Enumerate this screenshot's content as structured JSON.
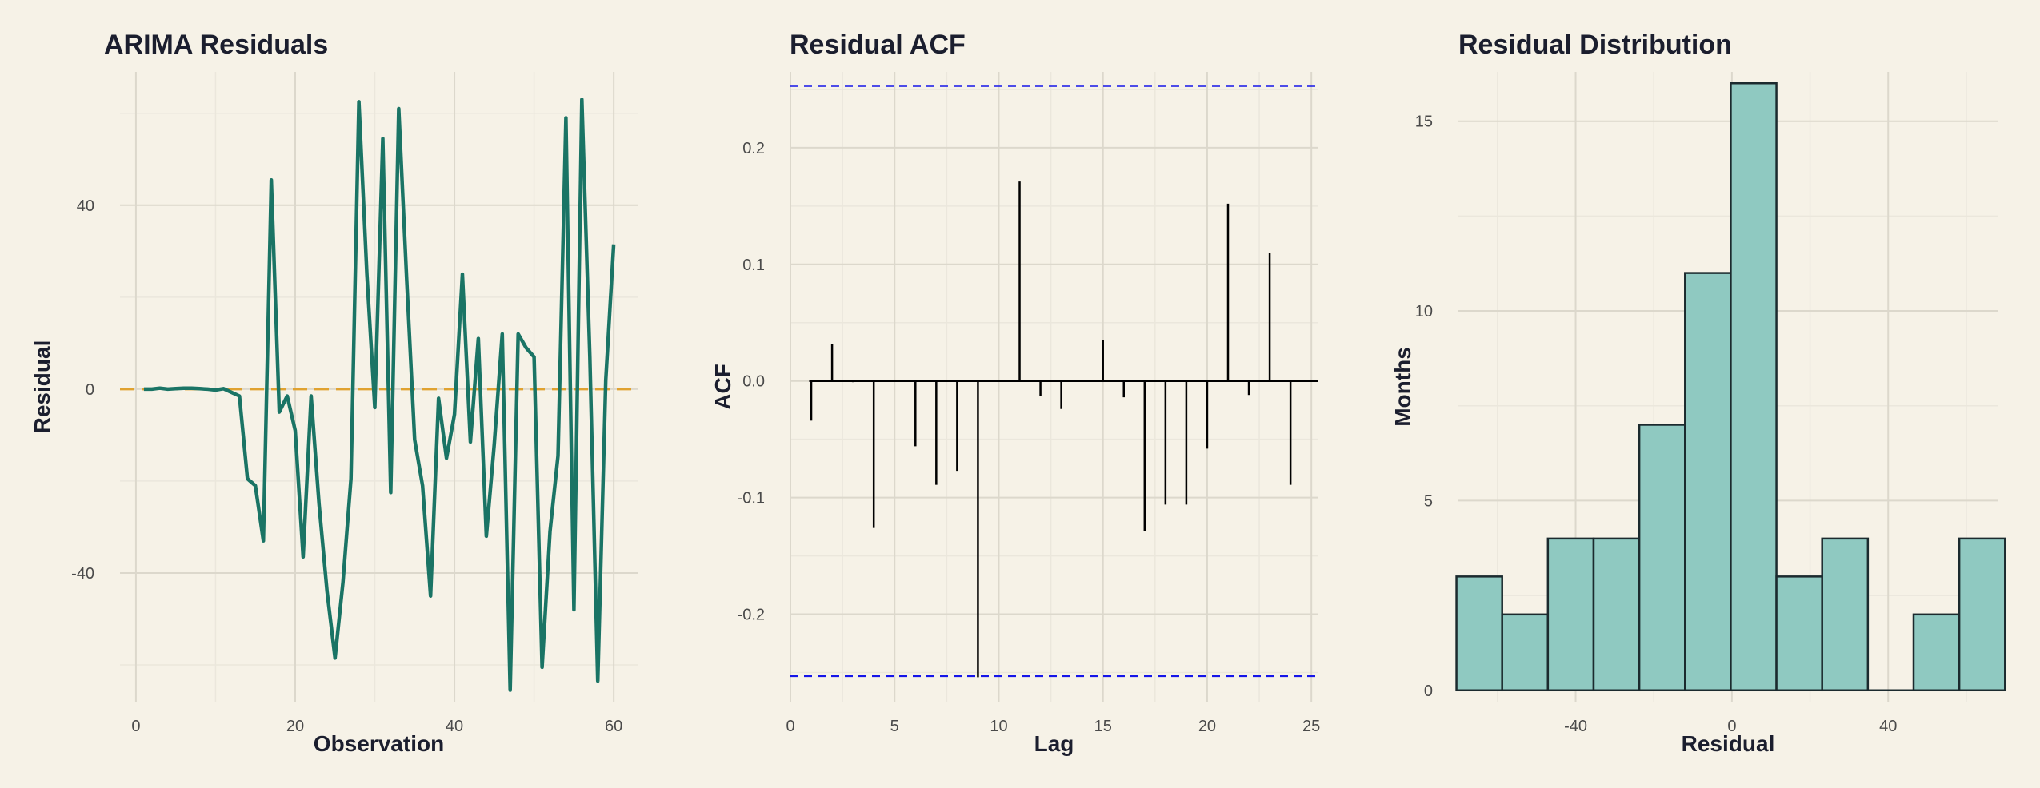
{
  "colors": {
    "background": "#f6f2e7",
    "grid_major": "#dcd8cc",
    "grid_minor": "#ebe7dc",
    "residual_line": "#1a7465",
    "zero_line": "#e0a230",
    "acf_bar": "#000000",
    "confidence_band": "#1515e8",
    "hist_fill": "#8fc9c1",
    "hist_edge": "#1b2a2e"
  },
  "chart_data": [
    {
      "type": "line",
      "title": "ARIMA Residuals",
      "xlabel": "Observation",
      "ylabel": "Residual",
      "xlim": [
        -2,
        63
      ],
      "ylim": [
        -68,
        69
      ],
      "xticks": [
        0,
        20,
        40,
        60
      ],
      "yticks": [
        -40,
        0,
        40
      ],
      "grid": true,
      "reference_line": {
        "y": 0,
        "style": "dashed"
      },
      "x": [
        1,
        2,
        3,
        4,
        5,
        6,
        7,
        8,
        9,
        10,
        11,
        12,
        13,
        14,
        15,
        16,
        17,
        18,
        19,
        20,
        21,
        22,
        23,
        24,
        25,
        26,
        27,
        28,
        29,
        30,
        31,
        32,
        33,
        34,
        35,
        36,
        37,
        38,
        39,
        40,
        41,
        42,
        43,
        44,
        45,
        46,
        47,
        48,
        49,
        50,
        51,
        52,
        53,
        54,
        55,
        56,
        57,
        58,
        59,
        60
      ],
      "y": [
        0,
        0,
        0.2,
        0,
        0.1,
        0.2,
        0.2,
        0.1,
        0,
        -0.2,
        0.1,
        -0.7,
        -1.5,
        -19.5,
        -21,
        -33,
        45.5,
        -5,
        -1.5,
        -9,
        -36.5,
        -1.5,
        -25,
        -44,
        -58.5,
        -42,
        -19.5,
        62.5,
        25,
        -4,
        54.5,
        -22.5,
        61,
        24,
        -11,
        -21,
        -45,
        -2,
        -15,
        -5.5,
        25,
        -11.5,
        11,
        -32,
        -12,
        12,
        -65.5,
        12,
        9,
        7,
        -60.5,
        -31,
        -14.5,
        59,
        -48,
        63,
        7,
        -63.5,
        2,
        31.5
      ]
    },
    {
      "type": "bar",
      "title": "Residual ACF",
      "xlabel": "Lag",
      "ylabel": "ACF",
      "xlim": [
        0,
        25.3
      ],
      "ylim": [
        -0.275,
        0.265
      ],
      "xticks": [
        0,
        5,
        10,
        15,
        20,
        25
      ],
      "yticks": [
        -0.2,
        -0.1,
        0.0,
        0.1,
        0.2
      ],
      "ytick_labels": [
        "-0.2",
        "-0.1",
        "0.0",
        "0.1",
        "0.2"
      ],
      "grid": true,
      "confidence_bounds": [
        -0.253,
        0.253
      ],
      "x": [
        1,
        2,
        3,
        4,
        5,
        6,
        7,
        8,
        9,
        10,
        11,
        12,
        13,
        14,
        15,
        16,
        17,
        18,
        19,
        20,
        21,
        22,
        23,
        24
      ],
      "y": [
        -0.034,
        0.032,
        -0.001,
        -0.126,
        0,
        -0.056,
        -0.089,
        -0.077,
        -0.254,
        0,
        0.171,
        -0.013,
        -0.024,
        0,
        0.035,
        -0.014,
        -0.129,
        -0.106,
        -0.106,
        -0.058,
        0.152,
        -0.012,
        0.11,
        -0.089
      ]
    },
    {
      "type": "bar",
      "subtype": "histogram",
      "title": "Residual Distribution",
      "xlabel": "Residual",
      "ylabel": "Months",
      "xlim": [
        -70,
        68
      ],
      "ylim": [
        -0.3,
        16.3
      ],
      "xticks": [
        -40,
        0,
        40
      ],
      "yticks": [
        0,
        5,
        10,
        15
      ],
      "grid": true,
      "bin_edges": [
        -70.5,
        -58.8,
        -47.1,
        -35.4,
        -23.7,
        -12,
        -0.3,
        11.4,
        23.1,
        34.8,
        46.5,
        58.2,
        69.9
      ],
      "counts": [
        3,
        2,
        4,
        4,
        7,
        11,
        16,
        3,
        4,
        0,
        2,
        4
      ]
    }
  ]
}
